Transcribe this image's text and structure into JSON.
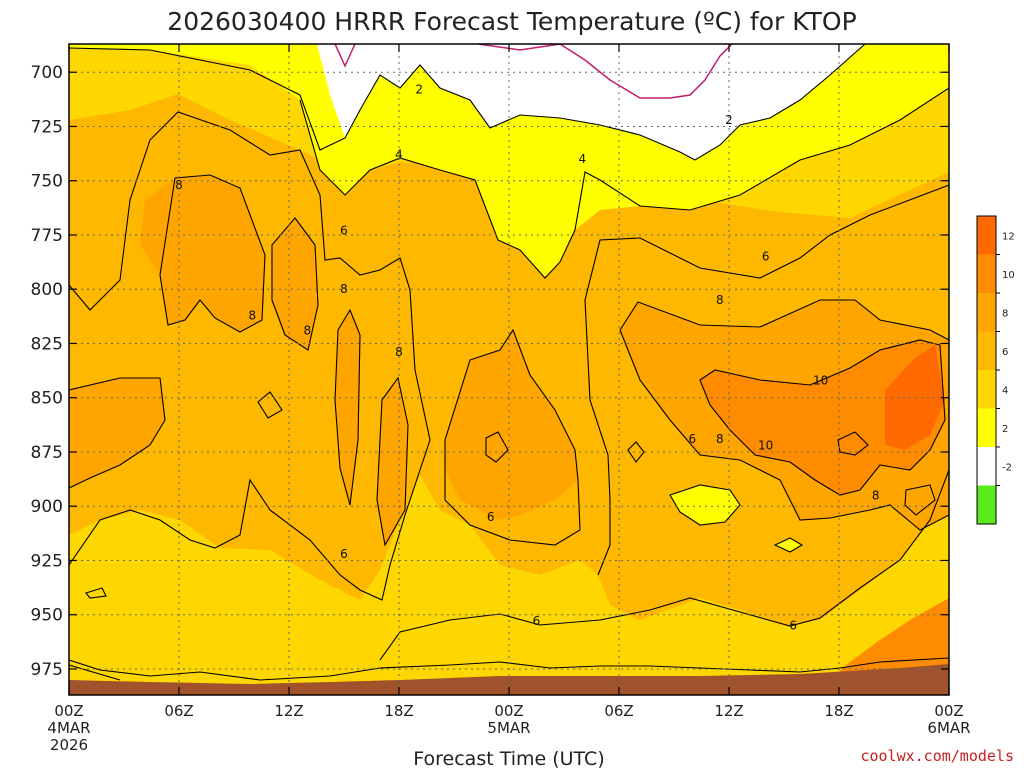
{
  "chart_data": {
    "type": "heatmap",
    "title": "2026030400 HRRR Forecast Temperature (ºC) for KTOP",
    "xlabel": "Forecast Time (UTC)",
    "ylabel": "",
    "pressure_levels": [
      700,
      725,
      750,
      775,
      800,
      825,
      850,
      875,
      900,
      925,
      950,
      975
    ],
    "ylim": [
      987,
      687
    ],
    "x_ticks": [
      {
        "hour": 0,
        "label": "00Z",
        "date": "4MAR",
        "year": "2026"
      },
      {
        "hour": 6,
        "label": "06Z"
      },
      {
        "hour": 12,
        "label": "12Z"
      },
      {
        "hour": 18,
        "label": "18Z"
      },
      {
        "hour": 24,
        "label": "00Z",
        "date": "5MAR"
      },
      {
        "hour": 30,
        "label": "06Z"
      },
      {
        "hour": 36,
        "label": "12Z"
      },
      {
        "hour": 42,
        "label": "18Z"
      },
      {
        "hour": 48,
        "label": "00Z",
        "date": "6MAR"
      }
    ],
    "xlim": [
      0,
      48
    ],
    "grid": true,
    "colorbar": {
      "labels": [
        "12",
        "10",
        "8",
        "6",
        "4",
        "2",
        "-2"
      ],
      "colors": [
        "#ff6a00",
        "#ff8c00",
        "#ffa500",
        "#ffb800",
        "#ffd700",
        "#ffff00",
        "#ffffff",
        "#5aeb1e"
      ]
    },
    "contour_labels": [
      {
        "value": "2",
        "hour": 19.1,
        "p": 708
      },
      {
        "value": "2",
        "hour": 36.0,
        "p": 722
      },
      {
        "value": "4",
        "hour": 18.0,
        "p": 738
      },
      {
        "value": "4",
        "hour": 28.0,
        "p": 740
      },
      {
        "value": "8",
        "hour": 6.0,
        "p": 752
      },
      {
        "value": "6",
        "hour": 15.0,
        "p": 773
      },
      {
        "value": "6",
        "hour": 38.0,
        "p": 785
      },
      {
        "value": "8",
        "hour": 15.0,
        "p": 800
      },
      {
        "value": "8",
        "hour": 35.5,
        "p": 805
      },
      {
        "value": "8",
        "hour": 10.0,
        "p": 812
      },
      {
        "value": "8",
        "hour": 13.0,
        "p": 819
      },
      {
        "value": "8",
        "hour": 18.0,
        "p": 829
      },
      {
        "value": "10",
        "hour": 41.0,
        "p": 842
      },
      {
        "value": "6",
        "hour": 34.0,
        "p": 869
      },
      {
        "value": "8",
        "hour": 35.5,
        "p": 869
      },
      {
        "value": "10",
        "hour": 38.0,
        "p": 872
      },
      {
        "value": "8",
        "hour": 44.0,
        "p": 895
      },
      {
        "value": "6",
        "hour": 23.0,
        "p": 905
      },
      {
        "value": "6",
        "hour": 15.0,
        "p": 922
      },
      {
        "value": "6",
        "hour": 25.5,
        "p": 953
      },
      {
        "value": "6",
        "hour": 39.5,
        "p": 955
      }
    ]
  },
  "credit": "coolwx.com/models"
}
